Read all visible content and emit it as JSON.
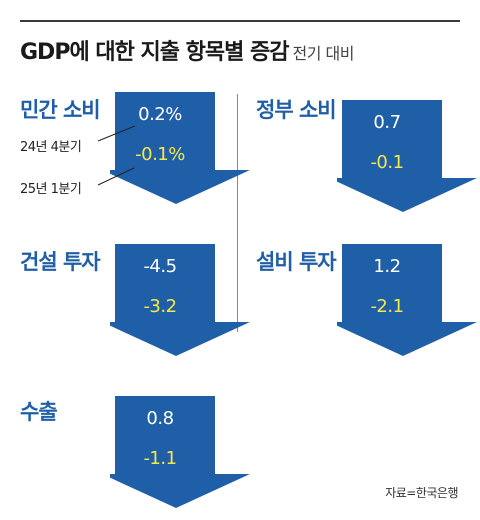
{
  "header": {
    "title": "GDP에 대한 지출 항목별 증감",
    "subtitle": "전기 대비"
  },
  "legend": {
    "prev_label": "24년 4분기",
    "curr_label": "25년 1분기"
  },
  "chart_data": {
    "type": "table",
    "title": "GDP에 대한 지출 항목별 증감",
    "subtitle": "전기 대비",
    "series": [
      {
        "name": "24년 4분기",
        "values": [
          0.2,
          0.7,
          -4.5,
          1.2,
          0.8
        ]
      },
      {
        "name": "25년 1분기",
        "values": [
          -0.1,
          -0.1,
          -3.2,
          -2.1,
          -1.1
        ]
      }
    ],
    "items": [
      {
        "name": "민간 소비",
        "prev": "0.2%",
        "curr": "-0.1%"
      },
      {
        "name": "정부 소비",
        "prev": "0.7",
        "curr": "-0.1"
      },
      {
        "name": "건설 투자",
        "prev": "-4.5",
        "curr": "-3.2"
      },
      {
        "name": "설비 투자",
        "prev": "1.2",
        "curr": "-2.1"
      },
      {
        "name": "수출",
        "prev": "0.8",
        "curr": "-1.1"
      }
    ],
    "colors": {
      "arrow": "#1f5fa8",
      "arrow_dark": "#174b86",
      "prev_text": "#ffffff",
      "curr_text": "#f5e84a",
      "category_text": "#1f5fa8"
    }
  },
  "source": "자료=한국은행"
}
